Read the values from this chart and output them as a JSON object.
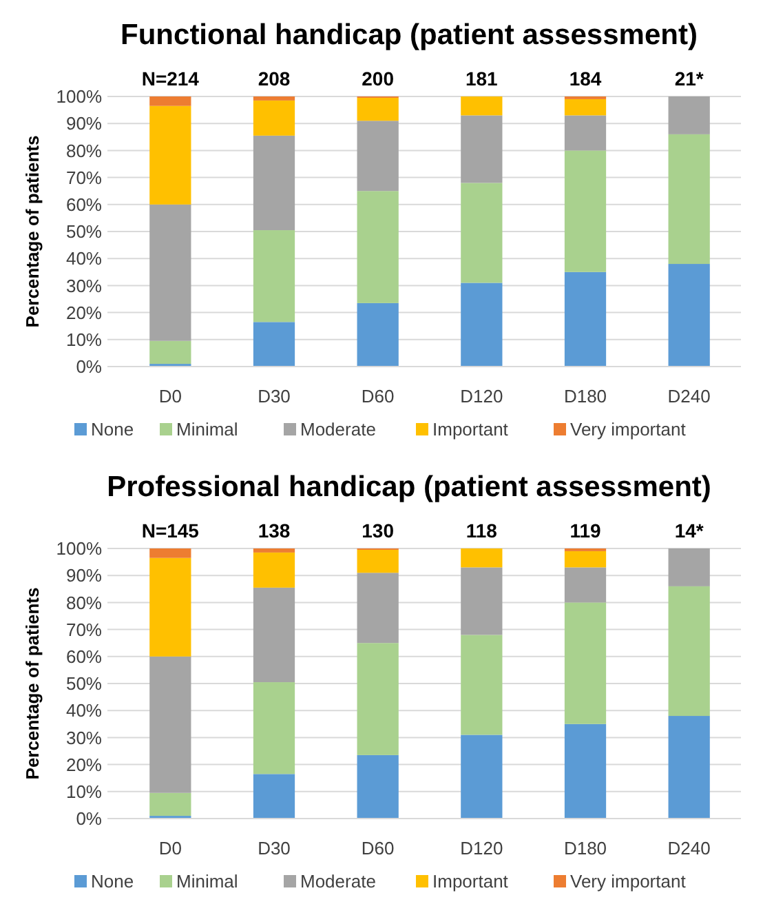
{
  "chart_data": [
    {
      "type": "bar",
      "title": "Functional handicap (patient assessment)",
      "ylabel": "Percentage of patients",
      "categories": [
        "D0",
        "D30",
        "D60",
        "D120",
        "D180",
        "D240"
      ],
      "stacked": true,
      "ylim": [
        0,
        100
      ],
      "yticks": [
        {
          "value": 0,
          "label": "0%"
        },
        {
          "value": 10,
          "label": "10%"
        },
        {
          "value": 20,
          "label": "20%"
        },
        {
          "value": 30,
          "label": "30%"
        },
        {
          "value": 40,
          "label": "40%"
        },
        {
          "value": 50,
          "label": "50%"
        },
        {
          "value": 60,
          "label": "60%"
        },
        {
          "value": 70,
          "label": "70%"
        },
        {
          "value": 80,
          "label": "80%"
        },
        {
          "value": 90,
          "label": "90%"
        },
        {
          "value": 100,
          "label": "100%"
        }
      ],
      "grid": "y",
      "legend": "bottom",
      "series": [
        {
          "name": "None",
          "color": "#5b9bd5",
          "values": [
            1,
            16.5,
            23.5,
            31,
            35,
            38
          ]
        },
        {
          "name": "Minimal",
          "color": "#a9d18e",
          "values": [
            8.5,
            34,
            41.5,
            37,
            45,
            48
          ]
        },
        {
          "name": "Moderate",
          "color": "#a5a5a5",
          "values": [
            50.5,
            35,
            26,
            25,
            13,
            14
          ]
        },
        {
          "name": "Important",
          "color": "#ffc000",
          "values": [
            36.5,
            13,
            8.5,
            7,
            6,
            0
          ]
        },
        {
          "name": "Very important",
          "color": "#ed7d31",
          "values": [
            3.5,
            1.5,
            0.5,
            0,
            1,
            0
          ]
        }
      ],
      "annotations": [
        {
          "text": "N=214",
          "x": "D0",
          "y": 100
        },
        {
          "text": "208",
          "x": "D30",
          "y": 100
        },
        {
          "text": "200",
          "x": "D60",
          "y": 100
        },
        {
          "text": "181",
          "x": "D120",
          "y": 100
        },
        {
          "text": "184",
          "x": "D180",
          "y": 100
        },
        {
          "text": "21*",
          "x": "D240",
          "y": 100
        }
      ]
    },
    {
      "type": "bar",
      "title": "Professional handicap (patient assessment)",
      "ylabel": "Percentage of patients",
      "categories": [
        "D0",
        "D30",
        "D60",
        "D120",
        "D180",
        "D240"
      ],
      "stacked": true,
      "ylim": [
        0,
        100
      ],
      "yticks": [
        {
          "value": 0,
          "label": "0%"
        },
        {
          "value": 10,
          "label": "10%"
        },
        {
          "value": 20,
          "label": "20%"
        },
        {
          "value": 30,
          "label": "30%"
        },
        {
          "value": 40,
          "label": "40%"
        },
        {
          "value": 50,
          "label": "50%"
        },
        {
          "value": 60,
          "label": "60%"
        },
        {
          "value": 70,
          "label": "70%"
        },
        {
          "value": 80,
          "label": "80%"
        },
        {
          "value": 90,
          "label": "90%"
        },
        {
          "value": 100,
          "label": "100%"
        }
      ],
      "grid": "y",
      "legend": "bottom",
      "series": [
        {
          "name": "None",
          "color": "#5b9bd5",
          "values": [
            1,
            16.5,
            23.5,
            31,
            35,
            38
          ]
        },
        {
          "name": "Minimal",
          "color": "#a9d18e",
          "values": [
            8.5,
            34,
            41.5,
            37,
            45,
            48
          ]
        },
        {
          "name": "Moderate",
          "color": "#a5a5a5",
          "values": [
            50.5,
            35,
            26,
            25,
            13,
            14
          ]
        },
        {
          "name": "Important",
          "color": "#ffc000",
          "values": [
            36.5,
            13,
            8.5,
            7,
            6,
            0
          ]
        },
        {
          "name": "Very important",
          "color": "#ed7d31",
          "values": [
            3.5,
            1.5,
            0.5,
            0,
            1,
            0
          ]
        }
      ],
      "annotations": [
        {
          "text": "N=145",
          "x": "D0",
          "y": 100
        },
        {
          "text": "138",
          "x": "D30",
          "y": 100
        },
        {
          "text": "130",
          "x": "D60",
          "y": 100
        },
        {
          "text": "118",
          "x": "D120",
          "y": 100
        },
        {
          "text": "119",
          "x": "D180",
          "y": 100
        },
        {
          "text": "14*",
          "x": "D240",
          "y": 100
        }
      ]
    }
  ]
}
